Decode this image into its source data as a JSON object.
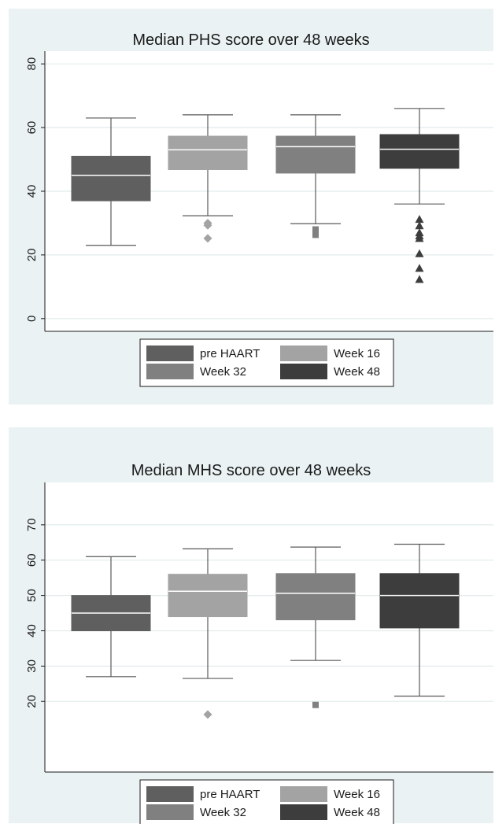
{
  "colors": {
    "background": "#eaf2f3",
    "plot_background": "#ffffff",
    "grid": "#e2ebec",
    "whisker": "#5a5a5a",
    "median_line": "#ffffff"
  },
  "chart_data": [
    {
      "type": "box",
      "title": "Median PHS score over 48 weeks",
      "xlabel": "",
      "ylabel": "",
      "ylim": [
        -4,
        84
      ],
      "yticks": [
        0,
        20,
        40,
        60,
        80
      ],
      "grid": true,
      "legend_position": "bottom",
      "series": [
        {
          "name": "pre HAART",
          "color": "#5f5f5f",
          "outlier_marker": "none",
          "whisker_low": 23,
          "q1": 37,
          "median": 45,
          "q3": 51,
          "whisker_high": 63,
          "outliers": []
        },
        {
          "name": "Week 16",
          "color": "#a3a3a3",
          "outlier_marker": "diamond",
          "whisker_low": 32.3,
          "q1": 46.8,
          "median": 53,
          "q3": 57.3,
          "whisker_high": 64,
          "outliers": [
            30,
            29.3,
            25.2
          ]
        },
        {
          "name": "Week 32",
          "color": "#808080",
          "outlier_marker": "square",
          "whisker_low": 29.8,
          "q1": 45.7,
          "median": 54,
          "q3": 57.3,
          "whisker_high": 64,
          "outliers": [
            28,
            27.2,
            26.3
          ]
        },
        {
          "name": "Week 48",
          "color": "#3d3d3d",
          "outlier_marker": "triangle",
          "whisker_low": 36,
          "q1": 47.2,
          "median": 53.2,
          "q3": 57.8,
          "whisker_high": 66,
          "outliers": [
            31.2,
            29.2,
            27,
            26,
            25.2,
            20.4,
            15.8,
            12.3
          ]
        }
      ]
    },
    {
      "type": "box",
      "title": "Median MHS score over 48 weeks",
      "xlabel": "",
      "ylabel": "",
      "ylim": [
        0,
        82
      ],
      "yticks": [
        20,
        30,
        40,
        50,
        60,
        70
      ],
      "grid": true,
      "legend_position": "bottom",
      "series": [
        {
          "name": "pre HAART",
          "color": "#5f5f5f",
          "outlier_marker": "none",
          "whisker_low": 27,
          "q1": 40,
          "median": 45,
          "q3": 50,
          "whisker_high": 61,
          "outliers": []
        },
        {
          "name": "Week 16",
          "color": "#a3a3a3",
          "outlier_marker": "diamond",
          "whisker_low": 26.5,
          "q1": 44,
          "median": 51.2,
          "q3": 56,
          "whisker_high": 63.2,
          "outliers": [
            16.3
          ]
        },
        {
          "name": "Week 32",
          "color": "#808080",
          "outlier_marker": "square",
          "whisker_low": 31.6,
          "q1": 43.1,
          "median": 50.6,
          "q3": 56.2,
          "whisker_high": 63.7,
          "outliers": [
            19
          ]
        },
        {
          "name": "Week 48",
          "color": "#3d3d3d",
          "outlier_marker": "none",
          "whisker_low": 21.5,
          "q1": 40.8,
          "median": 50,
          "q3": 56.2,
          "whisker_high": 64.5,
          "outliers": []
        }
      ]
    }
  ]
}
